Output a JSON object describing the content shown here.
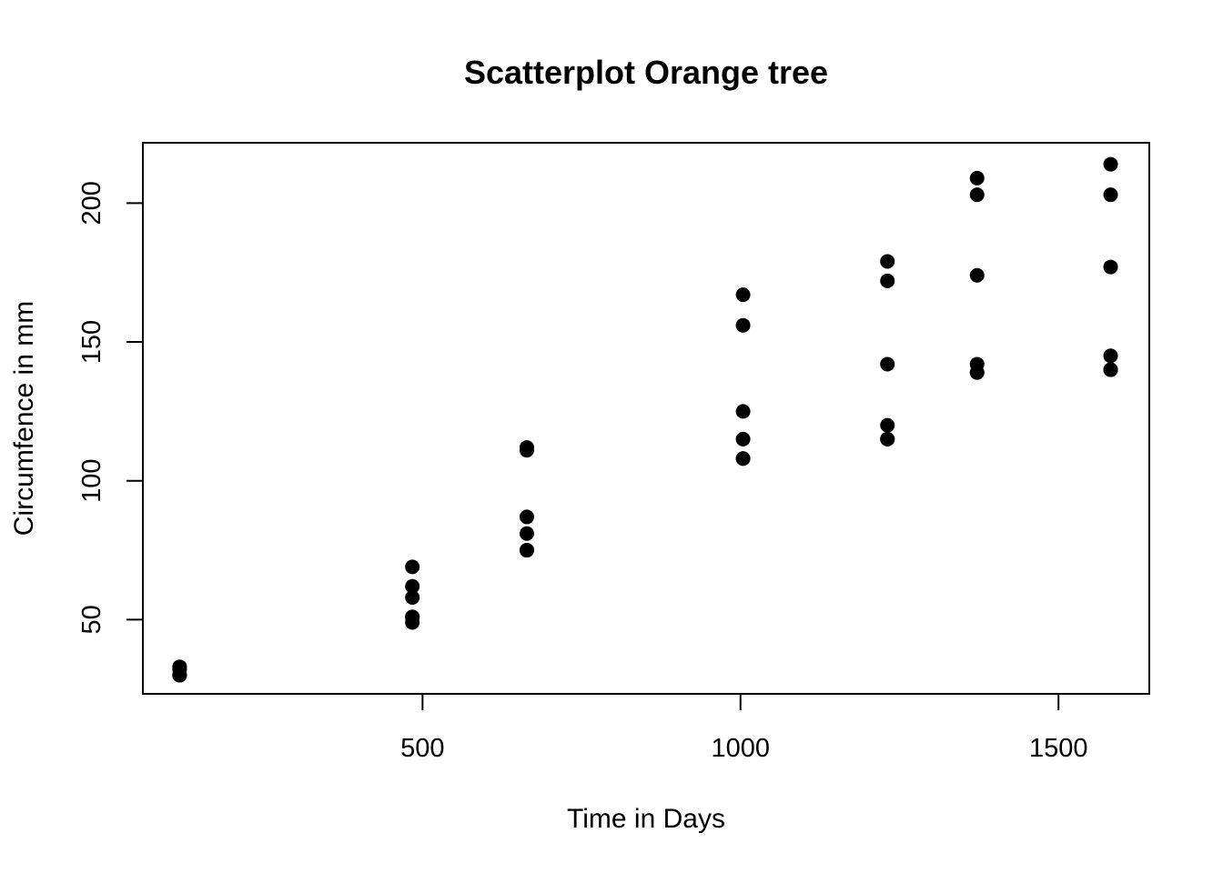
{
  "chart_data": {
    "type": "scatter",
    "title": "Scatterplot Orange tree",
    "xlabel": "Time in Days",
    "ylabel": "Circumfence in mm",
    "xlim": [
      60.22,
      1642.78
    ],
    "ylim": [
      23.28,
      221.72
    ],
    "xticks": [
      500,
      1000,
      1500
    ],
    "yticks": [
      50,
      100,
      150,
      200
    ],
    "grid": false,
    "legend": "none",
    "point_color": "#000000",
    "points": [
      {
        "x": 118,
        "y": 30
      },
      {
        "x": 484,
        "y": 51
      },
      {
        "x": 664,
        "y": 75
      },
      {
        "x": 1004,
        "y": 108
      },
      {
        "x": 1231,
        "y": 115
      },
      {
        "x": 1372,
        "y": 139
      },
      {
        "x": 1582,
        "y": 140
      },
      {
        "x": 118,
        "y": 33
      },
      {
        "x": 484,
        "y": 69
      },
      {
        "x": 664,
        "y": 111
      },
      {
        "x": 1004,
        "y": 156
      },
      {
        "x": 1231,
        "y": 172
      },
      {
        "x": 1372,
        "y": 203
      },
      {
        "x": 1582,
        "y": 203
      },
      {
        "x": 118,
        "y": 30
      },
      {
        "x": 484,
        "y": 51
      },
      {
        "x": 664,
        "y": 75
      },
      {
        "x": 1004,
        "y": 108
      },
      {
        "x": 1231,
        "y": 115
      },
      {
        "x": 1372,
        "y": 139
      },
      {
        "x": 1582,
        "y": 140
      },
      {
        "x": 118,
        "y": 32
      },
      {
        "x": 484,
        "y": 62
      },
      {
        "x": 664,
        "y": 112
      },
      {
        "x": 1004,
        "y": 167
      },
      {
        "x": 1231,
        "y": 179
      },
      {
        "x": 1372,
        "y": 209
      },
      {
        "x": 1582,
        "y": 214
      },
      {
        "x": 118,
        "y": 30
      },
      {
        "x": 484,
        "y": 49
      },
      {
        "x": 664,
        "y": 81
      },
      {
        "x": 1004,
        "y": 125
      },
      {
        "x": 1231,
        "y": 142
      },
      {
        "x": 1372,
        "y": 174
      },
      {
        "x": 1582,
        "y": 177
      },
      {
        "x": 118,
        "y": 33
      },
      {
        "x": 484,
        "y": 58
      },
      {
        "x": 664,
        "y": 87
      },
      {
        "x": 1004,
        "y": 115
      },
      {
        "x": 1231,
        "y": 120
      },
      {
        "x": 1372,
        "y": 142
      },
      {
        "x": 1582,
        "y": 145
      }
    ]
  }
}
